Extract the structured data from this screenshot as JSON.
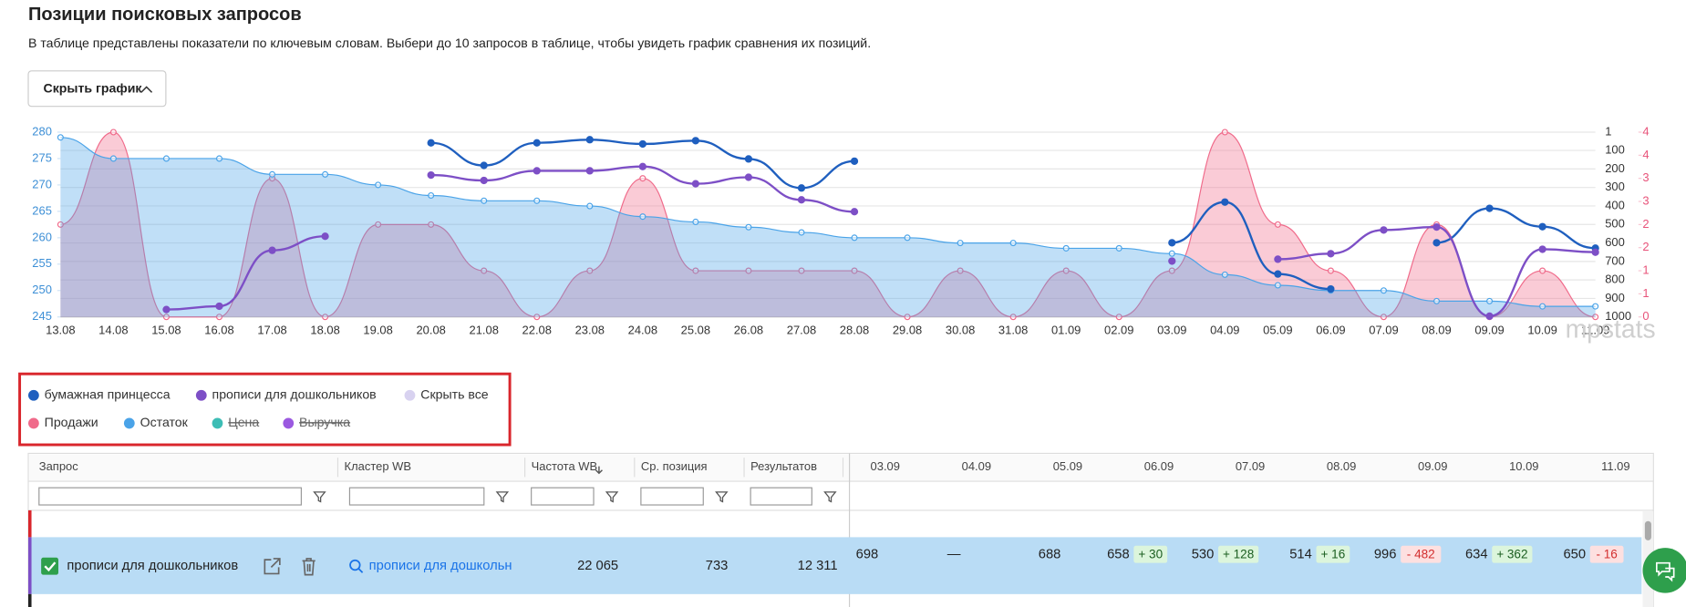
{
  "header": {
    "title": "Позиции поисковых запросов",
    "description": "В таблице представлены показатели по ключевым словам. Выбери до 10 запросов в таблице, чтобы увидеть график сравнения их позиций."
  },
  "button": {
    "label": "Скрыть график"
  },
  "chart_data": {
    "type": "line",
    "x": [
      "13.08",
      "14.08",
      "15.08",
      "16.08",
      "17.08",
      "18.08",
      "19.08",
      "20.08",
      "21.08",
      "22.08",
      "23.08",
      "24.08",
      "25.08",
      "26.08",
      "27.08",
      "28.08",
      "29.08",
      "30.08",
      "31.08",
      "01.09",
      "02.09",
      "03.09",
      "04.09",
      "05.09",
      "06.09",
      "07.09",
      "08.09",
      "09.09",
      "10.09",
      "11.09"
    ],
    "ylim": [
      245,
      280
    ],
    "yticks": [
      280,
      275,
      270,
      265,
      260,
      255,
      250,
      245
    ],
    "y2lim": [
      1,
      1000
    ],
    "y2_reversed": true,
    "y2ticks": [
      1,
      100,
      200,
      300,
      400,
      500,
      600,
      700,
      800,
      900,
      1000
    ],
    "y3lim": [
      0,
      4
    ],
    "y3ticks": [
      4,
      {
        "value": 3.5,
        "label": "4"
      },
      3,
      {
        "value": 2.5,
        "label": "3"
      },
      2,
      {
        "value": 1.5,
        "label": "2"
      },
      1,
      {
        "value": 0.5,
        "label": "1"
      },
      0
    ],
    "grid": true,
    "series": [
      {
        "name": "бумажная принцесса",
        "color": "#1f5fbf",
        "axis": "y2",
        "values": [
          null,
          null,
          null,
          null,
          null,
          null,
          null,
          59,
          181,
          59,
          42,
          65,
          47,
          146,
          303,
          158,
          null,
          null,
          null,
          null,
          null,
          599,
          379,
          768,
          849,
          null,
          599,
          413,
          512,
          628
        ]
      },
      {
        "name": "прописи для дошкольников",
        "color": "#7d4fc6",
        "axis": "y2",
        "values": [
          null,
          null,
          960,
          942,
          640,
          564,
          null,
          233,
          262,
          210,
          210,
          187,
          280,
          245,
          367,
          431,
          null,
          null,
          null,
          null,
          null,
          698,
          null,
          688,
          658,
          530,
          514,
          996,
          634,
          650
        ]
      },
      {
        "name": "Продажи",
        "color": "#f06a8a",
        "axis": "y3",
        "area": true,
        "values": [
          2,
          4,
          0,
          0,
          3,
          0,
          2,
          2,
          1,
          0,
          1,
          3,
          1,
          1,
          1,
          1,
          0,
          1,
          0,
          1,
          0,
          1,
          4,
          2,
          1,
          0,
          2,
          0,
          1,
          0
        ]
      },
      {
        "name": "Остаток",
        "color": "#4aa3e8",
        "axis": "y",
        "area": true,
        "values": [
          279,
          275,
          275,
          275,
          272,
          272,
          270,
          268,
          267,
          267,
          266,
          264,
          263,
          262,
          261,
          260,
          260,
          259,
          259,
          258,
          258,
          257,
          253,
          251,
          250,
          250,
          248,
          248,
          247,
          247
        ]
      }
    ],
    "watermark": "mpstats"
  },
  "legend": {
    "hide_all": "Скрыть все",
    "hidden_series": [
      {
        "name": "Цена",
        "color": "#3dbdb5"
      },
      {
        "name": "Выручка",
        "color": "#9b59e0"
      }
    ]
  },
  "table": {
    "columns": [
      "Запрос",
      "Кластер WB",
      "Частота WB",
      "Ср. позиция",
      "Результатов",
      "03.09",
      "04.09",
      "05.09",
      "06.09",
      "07.09",
      "08.09",
      "09.09",
      "10.09",
      "11.09"
    ],
    "rows": [
      {
        "query": "прописи для дошкольников",
        "cluster": "прописи для дошкольн",
        "frequency": "22 065",
        "avg_position": "733",
        "results": "12 311",
        "positions": [
          {
            "value": "698"
          },
          {
            "value": "—"
          },
          {
            "value": "688"
          },
          {
            "value": "658",
            "change": "+ 30"
          },
          {
            "value": "530",
            "change": "+ 128"
          },
          {
            "value": "514",
            "change": "+ 16"
          },
          {
            "value": "996",
            "change": "- 482"
          },
          {
            "value": "634",
            "change": "+ 362"
          },
          {
            "value": "650",
            "change": "- 16"
          }
        ]
      }
    ]
  }
}
